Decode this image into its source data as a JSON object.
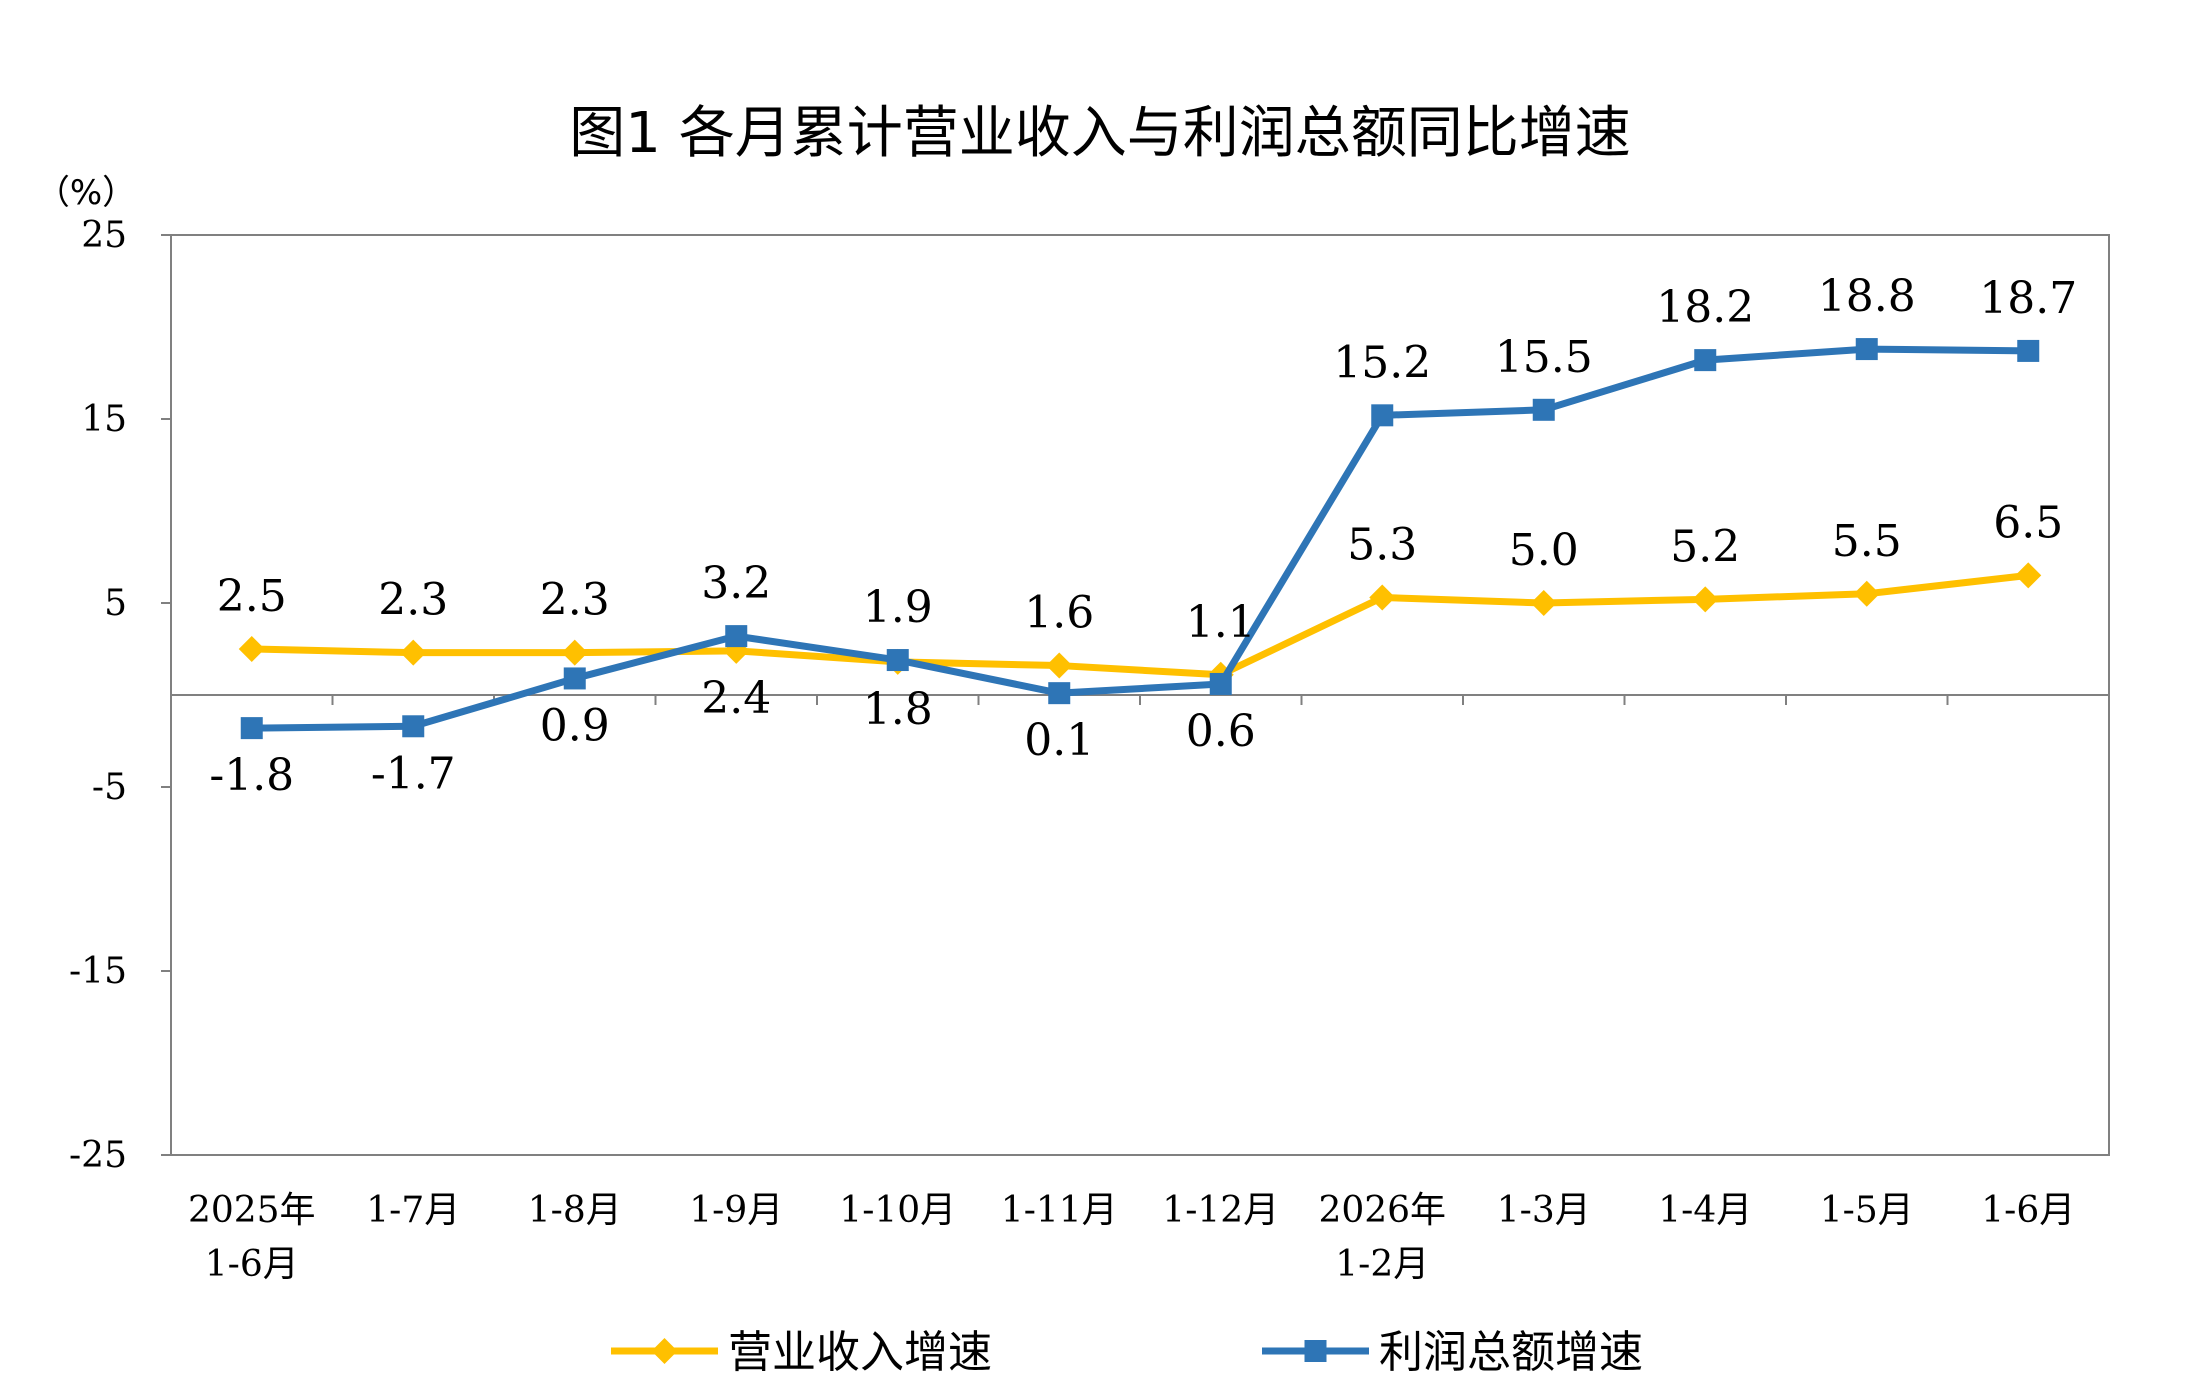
{
  "chart_data": {
    "type": "line",
    "title": "图1  各月累计营业收入与利润总额同比增速",
    "y_unit": "（%）",
    "ylim": [
      -25,
      25
    ],
    "yticks": [
      "25",
      "15",
      "5",
      "-5",
      "-15",
      "-25"
    ],
    "categories": [
      [
        "2025年",
        "1-6月"
      ],
      [
        "1-7月"
      ],
      [
        "1-8月"
      ],
      [
        "1-9月"
      ],
      [
        "1-10月"
      ],
      [
        "1-11月"
      ],
      [
        "1-12月"
      ],
      [
        "2026年",
        "1-2月"
      ],
      [
        "1-3月"
      ],
      [
        "1-4月"
      ],
      [
        "1-5月"
      ],
      [
        "1-6月"
      ]
    ],
    "series": [
      {
        "name": "营业收入增速",
        "color": "#ffc000",
        "marker": "diamond",
        "values": [
          2.5,
          2.3,
          2.3,
          2.4,
          1.8,
          1.6,
          1.1,
          5.3,
          5.0,
          5.2,
          5.5,
          6.5
        ],
        "labels": [
          "2.5",
          "2.3",
          "2.3",
          "2.4",
          "1.8",
          "1.6",
          "1.1",
          "5.3",
          "5.0",
          "5.2",
          "5.5",
          "6.5"
        ]
      },
      {
        "name": "利润总额增速",
        "color": "#2e75b6",
        "marker": "square",
        "values": [
          -1.8,
          -1.7,
          0.9,
          3.2,
          1.9,
          0.1,
          0.6,
          15.2,
          15.5,
          18.2,
          18.8,
          18.7
        ],
        "labels": [
          "-1.8",
          "-1.7",
          "0.9",
          "3.2",
          "1.9",
          "0.1",
          "0.6",
          "15.2",
          "15.5",
          "18.2",
          "18.8",
          "18.7"
        ]
      }
    ],
    "legend_position": "bottom",
    "grid": false
  }
}
